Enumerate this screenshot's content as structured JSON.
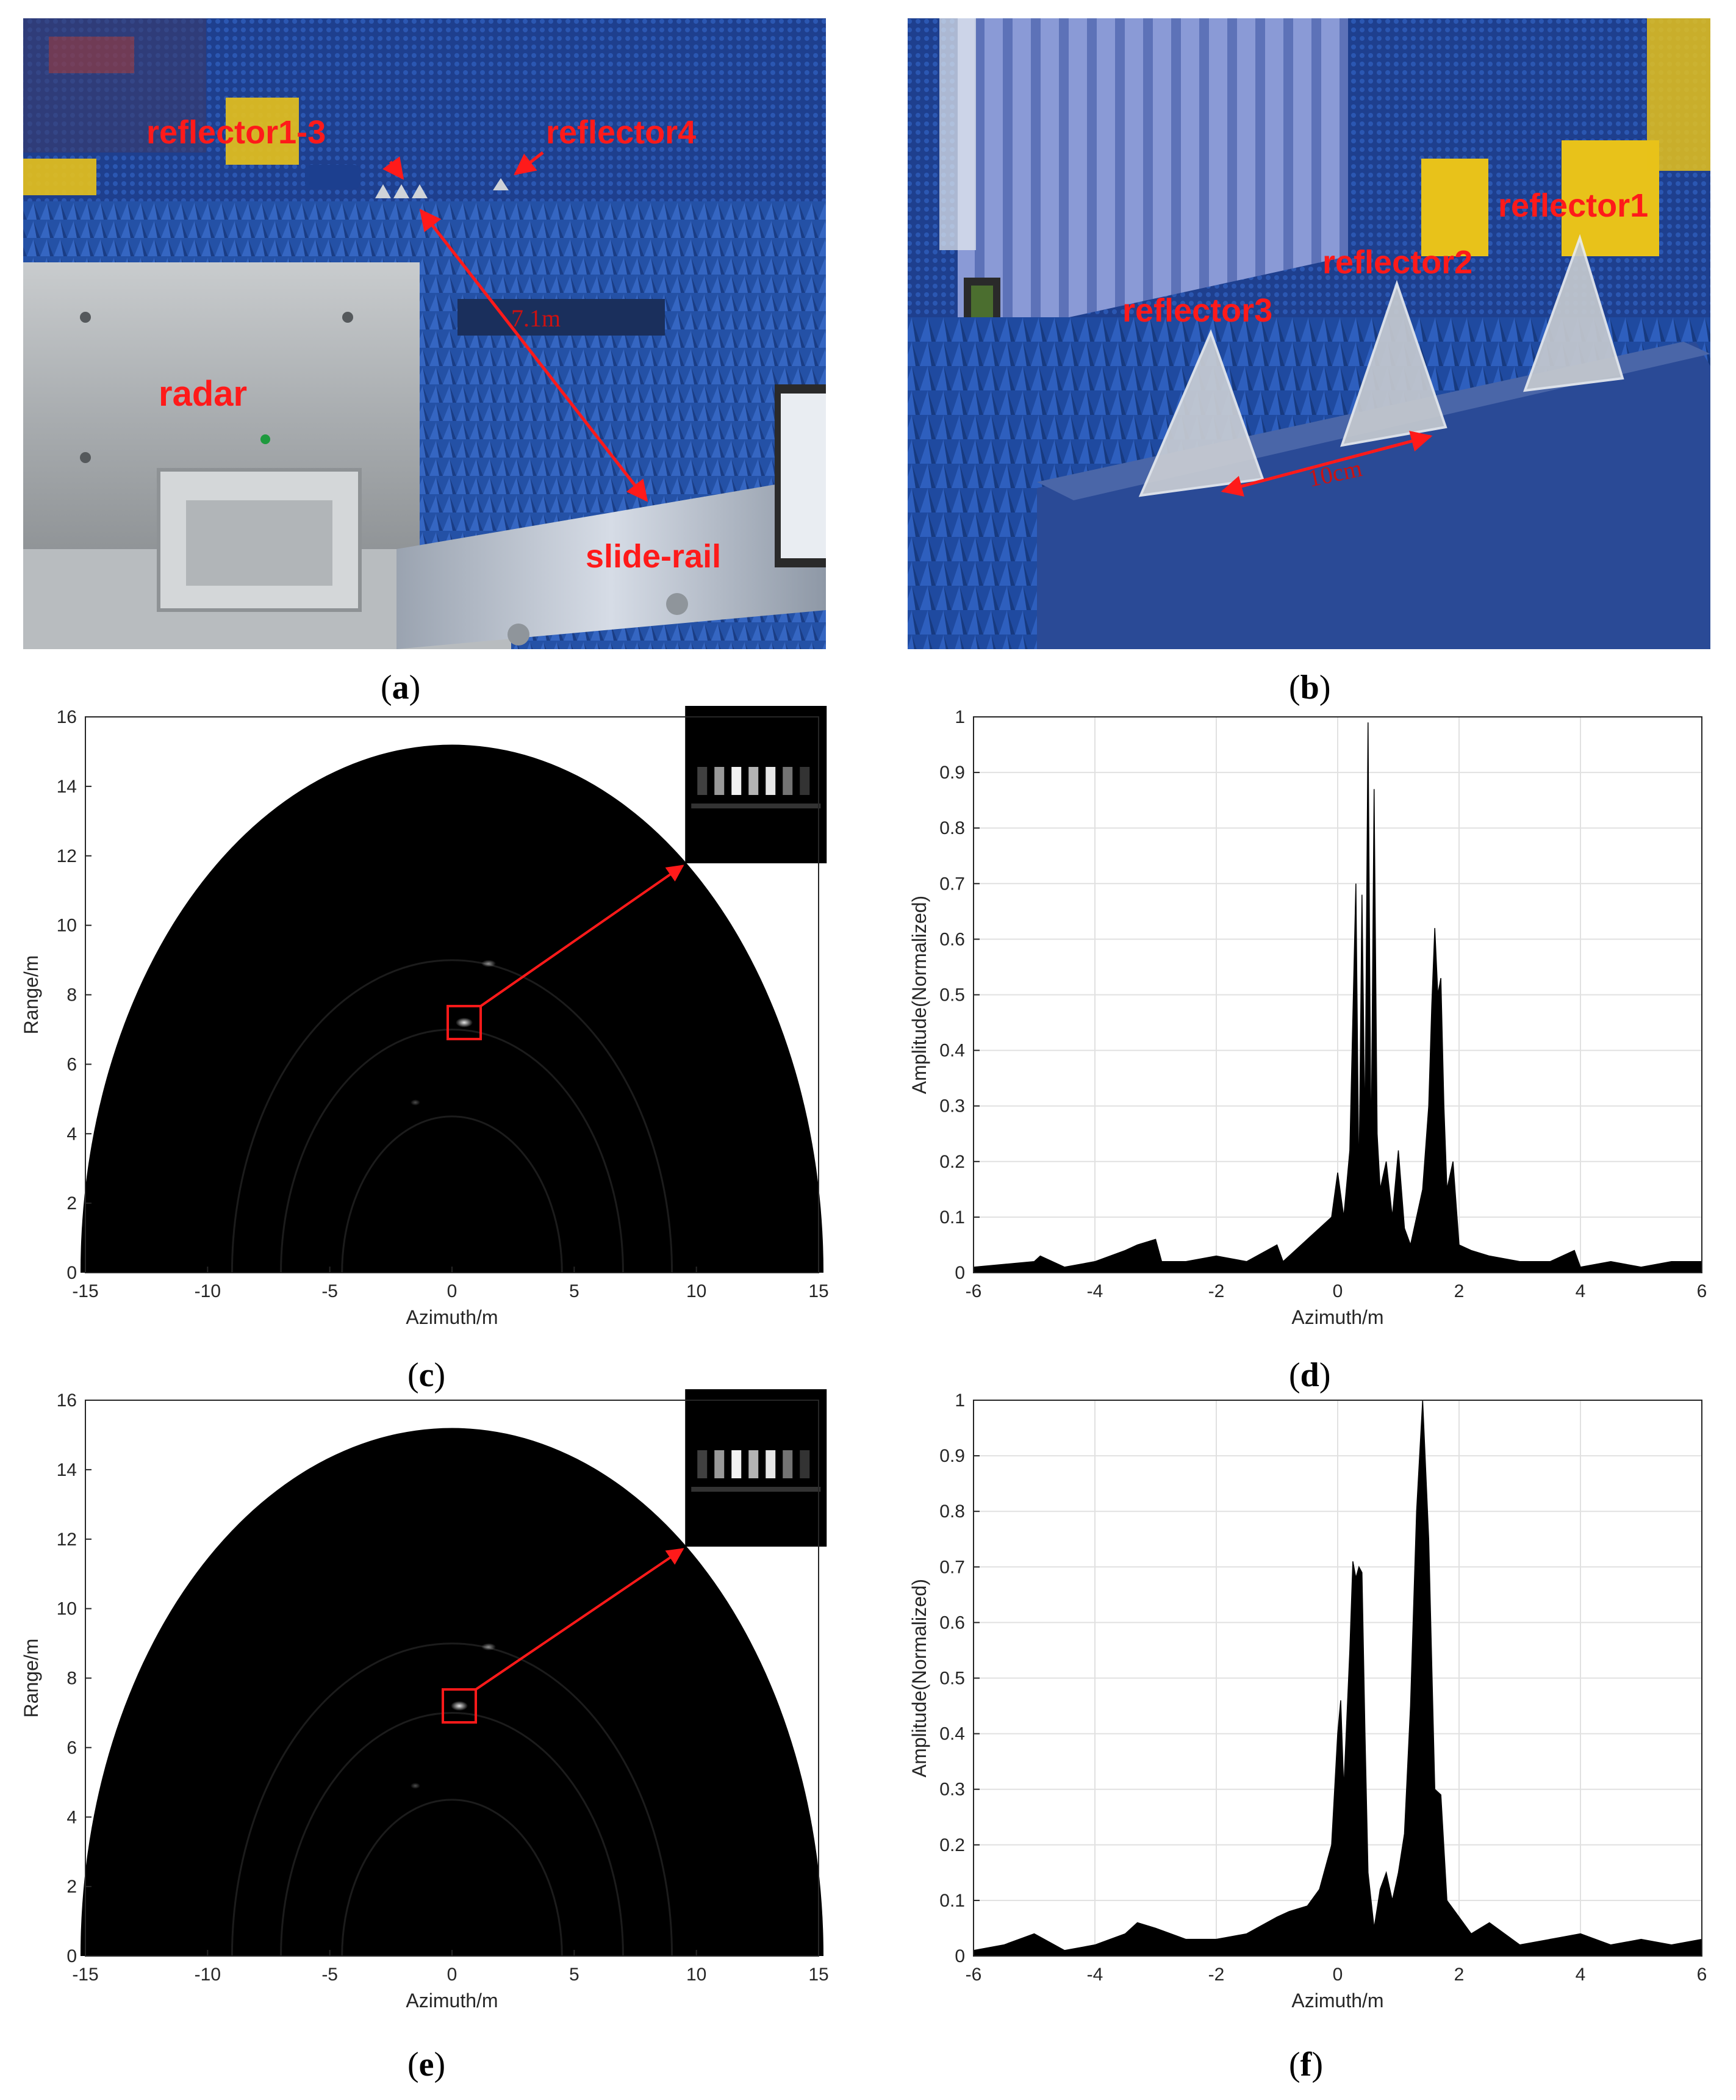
{
  "panels": {
    "a": {
      "caption_letter": "a",
      "labels": {
        "reflector13": "reflector1-3",
        "reflector4": "reflector4",
        "radar": "radar",
        "slide_rail": "slide-rail",
        "distance": "7.1m"
      }
    },
    "b": {
      "caption_letter": "b",
      "labels": {
        "reflector1": "reflector1",
        "reflector2": "reflector2",
        "reflector3": "reflector3",
        "spacing": "10cm"
      }
    },
    "c": {
      "caption_letter": "c"
    },
    "d": {
      "caption_letter": "d"
    },
    "e": {
      "caption_letter": "e"
    },
    "f": {
      "caption_letter": "f"
    }
  },
  "colors": {
    "annotation": "#ff1a1a",
    "chamber_blue": "#1f4fa8",
    "image_bg": "#000000",
    "grid": "#dcdcdc"
  },
  "chart_data": [
    {
      "id": "c",
      "type": "heatmap",
      "description_of_scene": "semicircular radar image, bright target near (0.5, 7.2) with zoomed inset",
      "xlabel": "Azimuth/m",
      "ylabel": "Range/m",
      "xlim": [
        -15,
        15
      ],
      "ylim": [
        0,
        16
      ],
      "xticks": [
        -15,
        -10,
        -5,
        0,
        5,
        10,
        15
      ],
      "yticks": [
        0,
        2,
        4,
        6,
        8,
        10,
        12,
        14,
        16
      ],
      "grid": false,
      "highlight_box": {
        "x": 0.5,
        "y": 7.2
      },
      "max_range": 15.2
    },
    {
      "id": "d",
      "type": "area",
      "xlabel": "Azimuth/m",
      "ylabel": "Amplitude(Normalized)",
      "xlim": [
        -6,
        6
      ],
      "ylim": [
        0,
        1
      ],
      "xticks": [
        -6,
        -4,
        -2,
        0,
        2,
        4,
        6
      ],
      "yticks": [
        0,
        0.1,
        0.2,
        0.3,
        0.4,
        0.5,
        0.6,
        0.7,
        0.8,
        0.9,
        1
      ],
      "grid": true,
      "x": [
        -6,
        -5,
        -4.9,
        -4.5,
        -4,
        -3.5,
        -3.3,
        -3,
        -2.9,
        -2.5,
        -2,
        -1.5,
        -1,
        -0.9,
        -0.5,
        -0.3,
        -0.1,
        0,
        0.1,
        0.2,
        0.3,
        0.35,
        0.4,
        0.45,
        0.5,
        0.55,
        0.6,
        0.65,
        0.7,
        0.8,
        0.9,
        1.0,
        1.1,
        1.2,
        1.3,
        1.4,
        1.5,
        1.55,
        1.6,
        1.65,
        1.7,
        1.75,
        1.8,
        1.9,
        2.0,
        2.2,
        2.5,
        3,
        3.5,
        3.9,
        4,
        4.5,
        5,
        5.5,
        6
      ],
      "y": [
        0.01,
        0.02,
        0.03,
        0.01,
        0.02,
        0.04,
        0.05,
        0.06,
        0.02,
        0.02,
        0.03,
        0.02,
        0.05,
        0.02,
        0.06,
        0.08,
        0.1,
        0.18,
        0.1,
        0.22,
        0.7,
        0.15,
        0.68,
        0.25,
        0.99,
        0.2,
        0.87,
        0.25,
        0.15,
        0.2,
        0.1,
        0.22,
        0.08,
        0.05,
        0.1,
        0.15,
        0.3,
        0.48,
        0.62,
        0.5,
        0.53,
        0.3,
        0.15,
        0.2,
        0.05,
        0.04,
        0.03,
        0.02,
        0.02,
        0.04,
        0.01,
        0.02,
        0.01,
        0.02,
        0.02
      ]
    },
    {
      "id": "e",
      "type": "heatmap",
      "description_of_scene": "semicircular radar image, bright target near (0.3, 7.2) with zoomed inset",
      "xlabel": "Azimuth/m",
      "ylabel": "Range/m",
      "xlim": [
        -15,
        15
      ],
      "ylim": [
        0,
        16
      ],
      "xticks": [
        -15,
        -10,
        -5,
        0,
        5,
        10,
        15
      ],
      "yticks": [
        0,
        2,
        4,
        6,
        8,
        10,
        12,
        14,
        16
      ],
      "grid": false,
      "highlight_box": {
        "x": 0.3,
        "y": 7.2
      },
      "max_range": 15.2
    },
    {
      "id": "f",
      "type": "area",
      "xlabel": "Azimuth/m",
      "ylabel": "Amplitude(Normalized)",
      "xlim": [
        -6,
        6
      ],
      "ylim": [
        0,
        1
      ],
      "xticks": [
        -6,
        -4,
        -2,
        0,
        2,
        4,
        6
      ],
      "yticks": [
        0,
        0.1,
        0.2,
        0.3,
        0.4,
        0.5,
        0.6,
        0.7,
        0.8,
        0.9,
        1
      ],
      "grid": true,
      "x": [
        -6,
        -5.5,
        -5,
        -4.5,
        -4,
        -3.5,
        -3.3,
        -3,
        -2.5,
        -2,
        -1.5,
        -1,
        -0.8,
        -0.5,
        -0.3,
        -0.1,
        0,
        0.05,
        0.1,
        0.2,
        0.25,
        0.3,
        0.35,
        0.4,
        0.45,
        0.5,
        0.6,
        0.7,
        0.8,
        0.9,
        1.0,
        1.1,
        1.2,
        1.3,
        1.4,
        1.5,
        1.6,
        1.7,
        1.8,
        2.0,
        2.2,
        2.5,
        3,
        3.5,
        4,
        4.5,
        5,
        5.5,
        6
      ],
      "y": [
        0.01,
        0.02,
        0.04,
        0.01,
        0.02,
        0.04,
        0.06,
        0.05,
        0.03,
        0.03,
        0.04,
        0.07,
        0.08,
        0.09,
        0.12,
        0.2,
        0.4,
        0.46,
        0.3,
        0.55,
        0.71,
        0.68,
        0.7,
        0.69,
        0.4,
        0.15,
        0.05,
        0.12,
        0.15,
        0.1,
        0.15,
        0.22,
        0.45,
        0.8,
        1.0,
        0.75,
        0.3,
        0.29,
        0.1,
        0.07,
        0.04,
        0.06,
        0.02,
        0.03,
        0.04,
        0.02,
        0.03,
        0.02,
        0.03
      ]
    }
  ]
}
